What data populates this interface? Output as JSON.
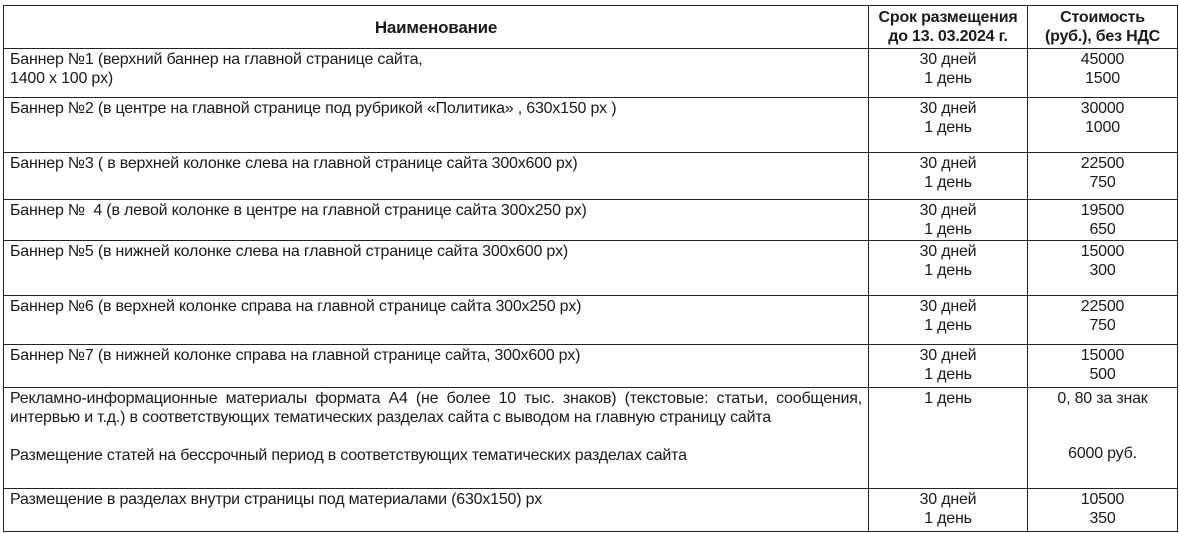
{
  "header": {
    "name": "Наименование",
    "term": [
      "Срок размещения",
      "до 13. 03.2024 г."
    ],
    "price": [
      "Стоимость",
      "(руб.), без НДС"
    ]
  },
  "rows": [
    {
      "name": [
        "Баннер №1 (верхний баннер на главной странице сайта,",
        "1400 х 100 px)"
      ],
      "term": [
        "30 дней",
        "1 день"
      ],
      "price": [
        "45000",
        "1500"
      ]
    },
    {
      "name": [
        "Баннер №2 (в центре на главной странице под рубрикой «Политика» , 630х150 px )"
      ],
      "term": [
        "30 дней",
        "1 день"
      ],
      "price": [
        "30000",
        "1000"
      ]
    },
    {
      "name": [
        "Баннер №3 ( в верхней колонке слева на главной странице сайта 300х600 px)"
      ],
      "term": [
        "30 дней",
        "1 день"
      ],
      "price": [
        "22500",
        "750"
      ]
    },
    {
      "name": [
        "Баннер №  4 (в левой колонке в центре на главной странице сайта 300х250 px)"
      ],
      "term": [
        "30 дней",
        "1 день"
      ],
      "price": [
        "19500",
        "650"
      ]
    },
    {
      "name": [
        "Баннер №5 (в нижней колонке слева на главной странице сайта 300х600 px)"
      ],
      "term": [
        "30 дней",
        "1 день"
      ],
      "price": [
        "15000",
        "300"
      ]
    },
    {
      "name": [
        "Баннер №6 (в верхней колонке справа на главной странице сайта 300х250 px)"
      ],
      "term": [
        "30 дней",
        "1 день"
      ],
      "price": [
        "22500",
        "750"
      ]
    },
    {
      "name": [
        "Баннер №7 (в нижней колонке справа на главной странице сайта, 300х600 px)"
      ],
      "term": [
        "30 дней",
        "1 день"
      ],
      "price": [
        "15000",
        "500"
      ]
    }
  ],
  "articles": {
    "name": "Рекламно-информационные материалы формата А4 (не более 10 тыс. знаков) (текстовые: статьи, сообщения, интервью  и т.д.) в соответствующих тематических разделах сайта с выводом на главную страницу сайта",
    "name2": "Размещение статей на бессрочный период в соответствующих тематических разделах сайта",
    "term": "1 день",
    "price": "0, 80 за знак",
    "price2": "6000 руб."
  },
  "last": {
    "name": "Размещение в разделах внутри страницы под материалами (630х150) px",
    "term": [
      "30 дней",
      "1 день"
    ],
    "price": [
      "10500",
      "350"
    ]
  }
}
